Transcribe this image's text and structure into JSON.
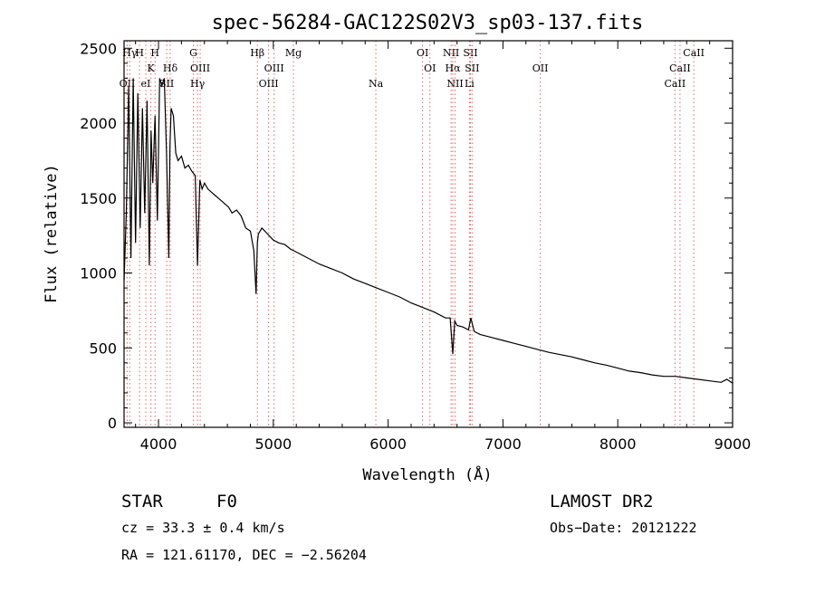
{
  "chart_data": {
    "type": "line",
    "title": "spec-56284-GAC122S02V3_sp03-137.fits",
    "xlabel": "Wavelength (Å)",
    "ylabel": "Flux (relative)",
    "xlim": [
      3700,
      9000
    ],
    "ylim": [
      -30,
      2550
    ],
    "xticks": [
      4000,
      5000,
      6000,
      7000,
      8000,
      9000
    ],
    "yticks": [
      0,
      500,
      1000,
      1500,
      2000,
      2500
    ],
    "grid": false,
    "series": [
      {
        "x": [
          3700,
          3720,
          3740,
          3760,
          3780,
          3800,
          3820,
          3840,
          3860,
          3880,
          3900,
          3920,
          3935,
          3950,
          3970,
          3990,
          4010,
          4030,
          4050,
          4070,
          4090,
          4100,
          4110,
          4130,
          4150,
          4170,
          4200,
          4230,
          4260,
          4290,
          4320,
          4340,
          4360,
          4380,
          4400,
          4430,
          4460,
          4490,
          4520,
          4550,
          4580,
          4610,
          4640,
          4680,
          4720,
          4760,
          4800,
          4830,
          4850,
          4861,
          4870,
          4900,
          4950,
          5000,
          5050,
          5100,
          5150,
          5200,
          5300,
          5400,
          5500,
          5600,
          5700,
          5800,
          5900,
          6000,
          6100,
          6200,
          6300,
          6400,
          6500,
          6540,
          6563,
          6580,
          6600,
          6650,
          6700,
          6720,
          6750,
          6800,
          6900,
          7000,
          7100,
          7200,
          7300,
          7400,
          7500,
          7600,
          7700,
          7800,
          7900,
          8000,
          8100,
          8200,
          8300,
          8400,
          8500,
          8600,
          8700,
          8800,
          8900,
          8950,
          9000
        ],
        "y": [
          950,
          1400,
          2250,
          1100,
          2300,
          1200,
          2200,
          1300,
          2100,
          1400,
          2150,
          1050,
          1950,
          1600,
          2050,
          1350,
          2300,
          2250,
          2300,
          1800,
          1100,
          1850,
          2100,
          2050,
          1800,
          1750,
          1780,
          1700,
          1720,
          1680,
          1650,
          1050,
          1620,
          1560,
          1600,
          1560,
          1540,
          1520,
          1500,
          1480,
          1460,
          1440,
          1400,
          1420,
          1380,
          1300,
          1280,
          1150,
          860,
          1200,
          1260,
          1300,
          1260,
          1220,
          1200,
          1190,
          1160,
          1140,
          1100,
          1060,
          1030,
          1000,
          960,
          930,
          900,
          870,
          840,
          800,
          770,
          740,
          700,
          700,
          460,
          680,
          650,
          640,
          620,
          700,
          610,
          590,
          570,
          550,
          530,
          510,
          490,
          470,
          455,
          440,
          420,
          400,
          385,
          365,
          345,
          335,
          320,
          310,
          310,
          300,
          290,
          280,
          270,
          290,
          265
        ]
      }
    ],
    "lines": [
      {
        "name": "OII",
        "x": 3727,
        "row": 3
      },
      {
        "name": "Hγ",
        "x": 3750,
        "row": 1
      },
      {
        "name": "H",
        "x": 3835,
        "row": 1
      },
      {
        "name": "K",
        "x": 3934,
        "row": 2
      },
      {
        "name": "eI",
        "x": 3889,
        "row": 3
      },
      {
        "name": "SII",
        "x": 4072,
        "row": 3
      },
      {
        "name": "Hδ",
        "x": 4102,
        "row": 2
      },
      {
        "name": "H",
        "x": 3970,
        "row": 1
      },
      {
        "name": "G",
        "x": 4304,
        "row": 1
      },
      {
        "name": "OIII",
        "x": 4363,
        "row": 2
      },
      {
        "name": "Hγ",
        "x": 4340,
        "row": 3
      },
      {
        "name": "Hβ",
        "x": 4861,
        "row": 1
      },
      {
        "name": "OIII",
        "x": 5007,
        "row": 2
      },
      {
        "name": "OIII",
        "x": 4959,
        "row": 3
      },
      {
        "name": "Mg",
        "x": 5175,
        "row": 1
      },
      {
        "name": "Na",
        "x": 5893,
        "row": 3
      },
      {
        "name": "OI",
        "x": 6300,
        "row": 1
      },
      {
        "name": "OI",
        "x": 6364,
        "row": 2
      },
      {
        "name": "NII",
        "x": 6548,
        "row": 1
      },
      {
        "name": "SII",
        "x": 6717,
        "row": 1
      },
      {
        "name": "Hα",
        "x": 6563,
        "row": 2
      },
      {
        "name": "SII",
        "x": 6731,
        "row": 2
      },
      {
        "name": "NII",
        "x": 6583,
        "row": 3
      },
      {
        "name": "Li",
        "x": 6708,
        "row": 3
      },
      {
        "name": "OII",
        "x": 7325,
        "row": 2
      },
      {
        "name": "CaII",
        "x": 8662,
        "row": 1
      },
      {
        "name": "CaII",
        "x": 8542,
        "row": 2
      },
      {
        "name": "CaII",
        "x": 8498,
        "row": 3
      }
    ],
    "colors": {
      "spectrum": "#000000",
      "lines": "#e06666"
    }
  },
  "info": {
    "object_class": "STAR",
    "subclass": "F0",
    "release": "LAMOST DR2",
    "redshift": "cz = 33.3 ± 0.4 km/s",
    "obs_date": "Obs−Date: 20121222",
    "coords": "RA = 121.61170, DEC =  −2.56204"
  }
}
